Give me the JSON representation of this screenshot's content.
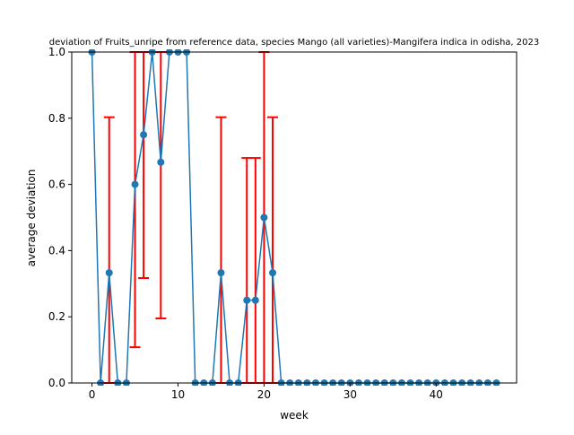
{
  "colors": {
    "line": "#1f77b4",
    "marker": "#1f77b4",
    "error_bar": "#ff0000",
    "axes": "#000000",
    "background": "#ffffff"
  },
  "chart_data": {
    "type": "line",
    "title": "deviation of Fruits_unripe from reference data, species Mango (all varieties)-Mangifera indica in odisha, 2023",
    "xlabel": "week",
    "ylabel": "average deviation",
    "xlim": [
      -2.35,
      49.35
    ],
    "ylim": [
      0,
      1.0
    ],
    "grid": false,
    "x_ticks": [
      0,
      10,
      20,
      30,
      40
    ],
    "x_tick_labels": [
      "0",
      "10",
      "20",
      "30",
      "40"
    ],
    "y_ticks": [
      0,
      0.2,
      0.4,
      0.6,
      0.8,
      1.0
    ],
    "y_tick_labels": [
      "0.0",
      "0.2",
      "0.4",
      "0.6",
      "0.8",
      "1.0"
    ],
    "series": [
      {
        "x": [
          0,
          1,
          2,
          3,
          4,
          5,
          6,
          7,
          8,
          9,
          10,
          11,
          12,
          13,
          14,
          15,
          16,
          17,
          18,
          19,
          20,
          21,
          22,
          23,
          24,
          25,
          26,
          27,
          28,
          29,
          30,
          31,
          32,
          33,
          34,
          35,
          36,
          37,
          38,
          39,
          40,
          41,
          42,
          43,
          44,
          45,
          46,
          47
        ],
        "values": [
          1.0,
          0,
          0.333,
          0,
          0,
          0.6,
          0.75,
          1.0,
          0.667,
          1.0,
          1.0,
          1.0,
          0,
          0,
          0,
          0.333,
          0,
          0,
          0.25,
          0.25,
          0.5,
          0.333,
          0,
          0,
          0,
          0,
          0,
          0,
          0,
          0,
          0,
          0,
          0,
          0,
          0,
          0,
          0,
          0,
          0,
          0,
          0,
          0,
          0,
          0,
          0,
          0,
          0,
          0
        ],
        "error_bars": [
          {
            "x": 2,
            "low": 0,
            "high": 0.803
          },
          {
            "x": 5,
            "low": 0.108,
            "high": 1.0
          },
          {
            "x": 6,
            "low": 0.317,
            "high": 1.0
          },
          {
            "x": 8,
            "low": 0.195,
            "high": 1.0
          },
          {
            "x": 15,
            "low": 0,
            "high": 0.803
          },
          {
            "x": 18,
            "low": 0,
            "high": 0.68
          },
          {
            "x": 19,
            "low": 0,
            "high": 0.68
          },
          {
            "x": 20,
            "low": 0,
            "high": 1.0
          },
          {
            "x": 21,
            "low": 0,
            "high": 0.803
          }
        ]
      }
    ]
  }
}
